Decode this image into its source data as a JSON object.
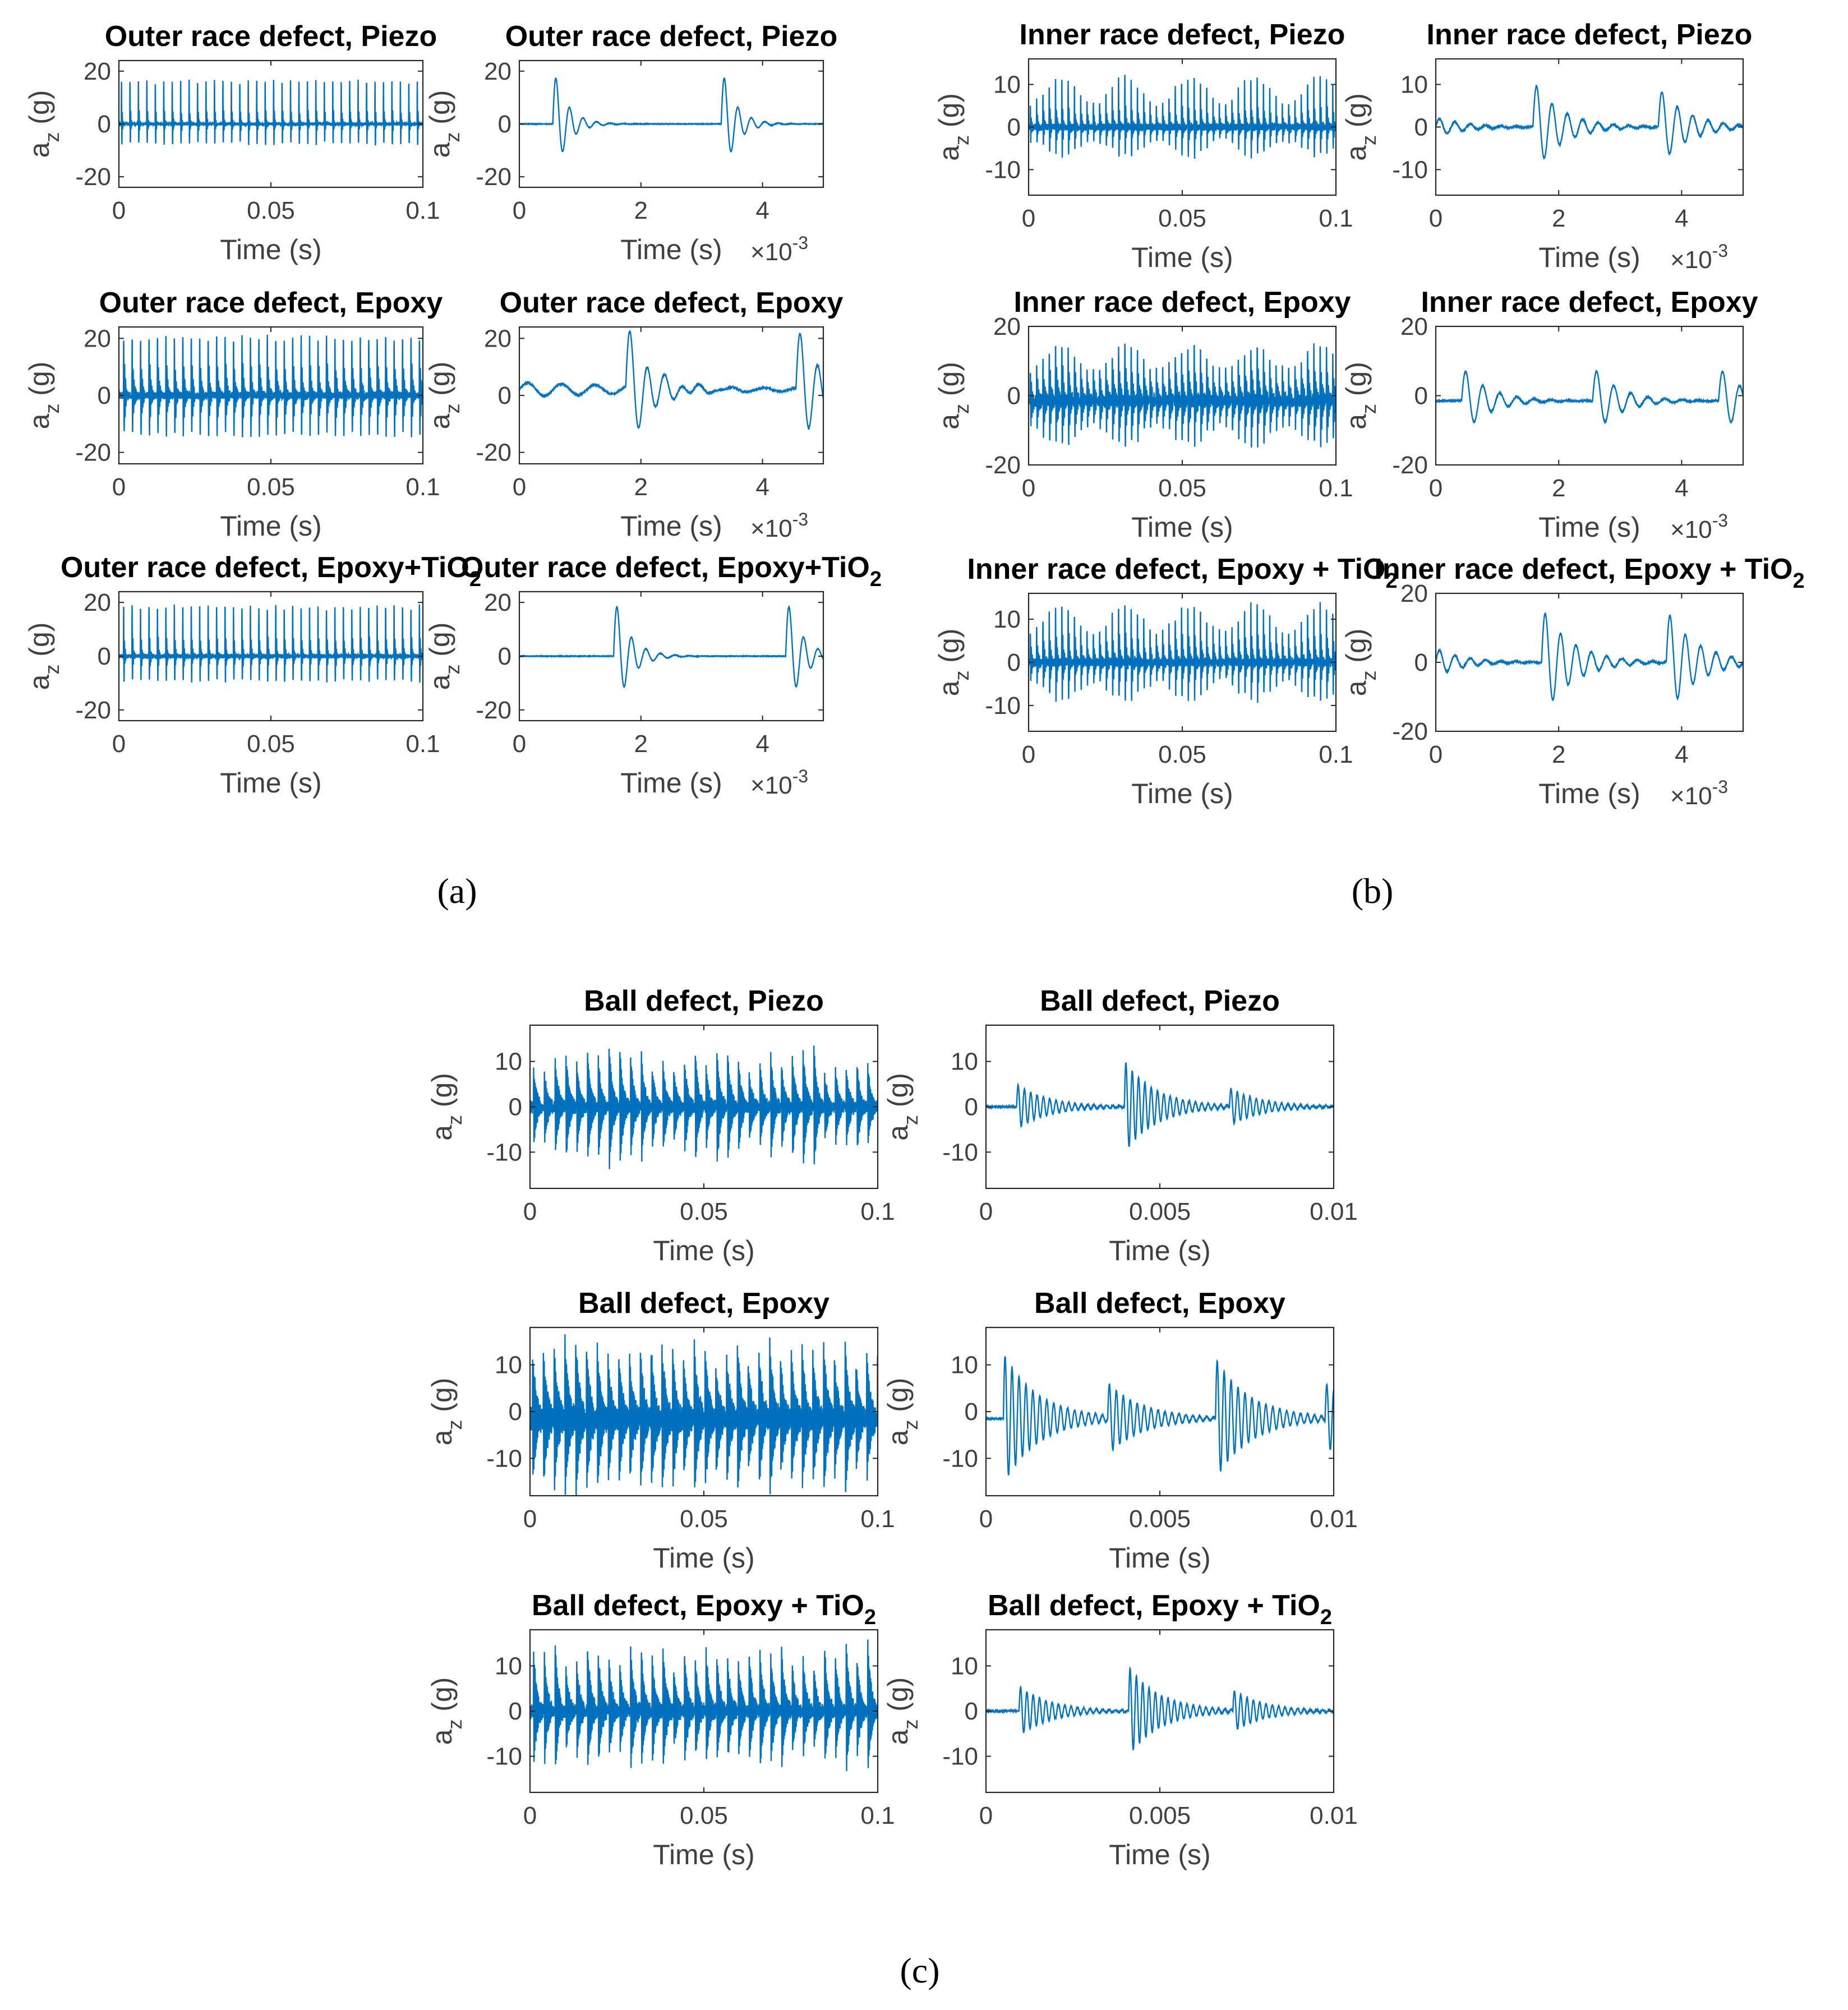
{
  "figure": {
    "panel_labels": [
      {
        "id": "a",
        "text": "(a)"
      },
      {
        "id": "b",
        "text": "(b)"
      },
      {
        "id": "c",
        "text": "(c)"
      }
    ]
  },
  "style": {
    "line_color": "#0072BD",
    "axis_color": "#262626",
    "text_color": "#000000",
    "tick_color": "#404040"
  },
  "axis_text": {
    "ylabel_main": "a",
    "ylabel_sub": "z",
    "ylabel_unit": "(g)",
    "xlabel": "Time (s)",
    "exp_base": "×10",
    "exp_power": "-3"
  },
  "chart_data": [
    {
      "id": "a-full-piezo",
      "type": "line",
      "title": "Outer race defect, Piezo",
      "xlabel": "Time (s)",
      "ylabel": "a_z (g)",
      "xlim": [
        0,
        0.1
      ],
      "ylim": [
        -24,
        24
      ],
      "yticks": [
        -20,
        0,
        20
      ],
      "xticks": [
        0,
        0.05,
        0.1
      ],
      "xtick_labels": [
        "0",
        "0.05",
        "0.1"
      ],
      "signal": {
        "mode": "repeat",
        "period": 0.00278,
        "phase": 0.0008,
        "pos": 22,
        "neg": -19,
        "decay": 0.0002,
        "fn": 4000,
        "noise": 0.6,
        "seed": 1
      }
    },
    {
      "id": "a-zoom-piezo",
      "type": "line",
      "title": "Outer race defect, Piezo",
      "xlabel": "Time (s)",
      "ylabel": "a_z (g)",
      "xlim": [
        0,
        5
      ],
      "ylim": [
        -24,
        24
      ],
      "x_multiplier": "×10^-3",
      "yticks": [
        -20,
        0,
        20
      ],
      "xticks": [
        0,
        2,
        4
      ],
      "xtick_labels": [
        "0",
        "2",
        "4"
      ],
      "signal": {
        "mode": "events",
        "impacts": [
          [
            0.55,
            1.0
          ],
          [
            3.32,
            1.0
          ]
        ],
        "amp": 22,
        "decay": 0.22,
        "fn": 4.5,
        "noise": 0.05,
        "seed": 2
      }
    },
    {
      "id": "a-full-epoxy",
      "type": "line",
      "title": "Outer race defect, Epoxy",
      "xlabel": "Time (s)",
      "ylabel": "a_z (g)",
      "xlim": [
        0,
        0.1
      ],
      "ylim": [
        -24,
        24
      ],
      "yticks": [
        -20,
        0,
        20
      ],
      "xticks": [
        0,
        0.05,
        0.1
      ],
      "xtick_labels": [
        "0",
        "0.05",
        "0.1"
      ],
      "signal": {
        "mode": "repeat",
        "period": 0.00278,
        "phase": 0.0015,
        "pos": 24,
        "neg": -23,
        "decay": 0.00045,
        "fn": 3200,
        "noise": 1.2,
        "seed": 3
      }
    },
    {
      "id": "a-zoom-epoxy",
      "type": "line",
      "title": "Outer race defect, Epoxy",
      "xlabel": "Time (s)",
      "ylabel": "a_z (g)",
      "xlim": [
        0,
        5
      ],
      "ylim": [
        -24,
        24
      ],
      "x_multiplier": "×10^-3",
      "yticks": [
        -20,
        0,
        20
      ],
      "xticks": [
        0,
        2,
        4
      ],
      "xtick_labels": [
        "0",
        "2",
        "4"
      ],
      "signal": {
        "mode": "events",
        "impacts": [
          [
            1.75,
            1.0
          ],
          [
            4.55,
            1.0
          ]
        ],
        "amp": 23,
        "decay": 0.38,
        "fn": 3.5,
        "noise": 0.15,
        "offset": 2,
        "pre": [
          2.5,
          3.0,
          1.8
        ],
        "seed": 4
      }
    },
    {
      "id": "a-full-tio2",
      "type": "line",
      "title": "Outer race defect, Epoxy+TiO",
      "title_sub": "2",
      "xlabel": "Time (s)",
      "ylabel": "a_z (g)",
      "xlim": [
        0,
        0.1
      ],
      "ylim": [
        -24,
        24
      ],
      "yticks": [
        -20,
        0,
        20
      ],
      "xticks": [
        0,
        0.05,
        0.1
      ],
      "xtick_labels": [
        "0",
        "0.05",
        "0.1"
      ],
      "signal": {
        "mode": "repeat",
        "period": 0.00278,
        "phase": 0.0015,
        "pos": 24,
        "neg": -20,
        "decay": 0.00025,
        "fn": 3800,
        "noise": 0.8,
        "seed": 5
      }
    },
    {
      "id": "a-zoom-tio2",
      "type": "line",
      "title": "Outer race defect, Epoxy+TiO",
      "title_sub": "2",
      "xlabel": "Time (s)",
      "ylabel": "a_z (g)",
      "xlim": [
        0,
        5
      ],
      "ylim": [
        -24,
        24
      ],
      "x_multiplier": "×10^-3",
      "yticks": [
        -20,
        0,
        20
      ],
      "xticks": [
        0,
        2,
        4
      ],
      "xtick_labels": [
        "0",
        "2",
        "4"
      ],
      "signal": {
        "mode": "events",
        "impacts": [
          [
            1.55,
            1.0
          ],
          [
            4.38,
            1.0
          ]
        ],
        "amp": 23,
        "decay": 0.25,
        "fn": 4.2,
        "noise": 0.05,
        "seed": 6
      }
    },
    {
      "id": "b-full-piezo",
      "type": "line",
      "title": "Inner race defect, Piezo",
      "xlabel": "Time (s)",
      "ylabel": "a_z (g)",
      "xlim": [
        0,
        0.1
      ],
      "ylim": [
        -16,
        16
      ],
      "yticks": [
        -10,
        0,
        10
      ],
      "xticks": [
        0,
        0.05,
        0.1
      ],
      "xtick_labels": [
        "0",
        "0.05",
        "0.1"
      ],
      "signal": {
        "mode": "repeat",
        "period": 0.00205,
        "phase": 0.0005,
        "pos": 15,
        "neg": -14,
        "decay": 0.0003,
        "fn": 3500,
        "noise": 0.8,
        "mod": 0.021,
        "moddepth": 0.55,
        "seed": 7
      }
    },
    {
      "id": "b-zoom-piezo",
      "type": "line",
      "title": "Inner race defect, Piezo",
      "xlabel": "Time (s)",
      "ylabel": "a_z (g)",
      "xlim": [
        0,
        5
      ],
      "ylim": [
        -16,
        16
      ],
      "x_multiplier": "×10^-3",
      "yticks": [
        -10,
        0,
        10
      ],
      "xticks": [
        0,
        2,
        4
      ],
      "xtick_labels": [
        "0",
        "2",
        "4"
      ],
      "signal": {
        "mode": "events",
        "impacts": [
          [
            1.58,
            1.0
          ],
          [
            3.62,
            0.85
          ]
        ],
        "amp": 11,
        "decay": 0.45,
        "fn": 4.0,
        "noise": 0.1,
        "pre": [
          2.2,
          0.5,
          4.0
        ],
        "seed": 8
      }
    },
    {
      "id": "b-full-epoxy",
      "type": "line",
      "title": "Inner race defect, Epoxy",
      "xlabel": "Time (s)",
      "ylabel": "a_z (g)",
      "xlim": [
        0,
        0.1
      ],
      "ylim": [
        -20,
        20
      ],
      "yticks": [
        -20,
        0,
        20
      ],
      "xticks": [
        0,
        0.05,
        0.1
      ],
      "xtick_labels": [
        "0",
        "0.05",
        "0.1"
      ],
      "signal": {
        "mode": "repeat",
        "period": 0.00205,
        "phase": 0.0005,
        "pos": 18,
        "neg": -19,
        "decay": 0.0006,
        "fn": 3000,
        "noise": 1.2,
        "mod": 0.021,
        "moddepth": 0.45,
        "offset": -1.5,
        "seed": 9
      }
    },
    {
      "id": "b-zoom-epoxy",
      "type": "line",
      "title": "Inner race defect, Epoxy",
      "xlabel": "Time (s)",
      "ylabel": "a_z (g)",
      "xlim": [
        0,
        5
      ],
      "ylim": [
        -20,
        20
      ],
      "x_multiplier": "×10^-3",
      "yticks": [
        -20,
        0,
        20
      ],
      "xticks": [
        0,
        2,
        4
      ],
      "xtick_labels": [
        "0",
        "2",
        "4"
      ],
      "signal": {
        "mode": "events",
        "impacts": [
          [
            0.42,
            1.0
          ],
          [
            2.55,
            1.0
          ],
          [
            4.6,
            1.0
          ]
        ],
        "amp": 10,
        "decay": 0.42,
        "fn": 3.6,
        "noise": 0.1,
        "offset": -1.5,
        "seed": 10
      }
    },
    {
      "id": "b-full-tio2",
      "type": "line",
      "title": "Inner race defect, Epoxy + TiO",
      "title_sub": "2",
      "xlabel": "Time (s)",
      "ylabel": "a_z (g)",
      "xlim": [
        0,
        0.1
      ],
      "ylim": [
        -16,
        16
      ],
      "yticks": [
        -10,
        0,
        10
      ],
      "xticks": [
        0,
        0.05,
        0.1
      ],
      "xtick_labels": [
        "0",
        "0.05",
        "0.1"
      ],
      "signal": {
        "mode": "repeat",
        "period": 0.00205,
        "phase": 0.0005,
        "pos": 16,
        "neg": -15,
        "decay": 0.0004,
        "fn": 3400,
        "noise": 0.9,
        "mod": 0.021,
        "moddepth": 0.5,
        "seed": 11
      }
    },
    {
      "id": "b-zoom-tio2",
      "type": "line",
      "title": "Inner race defect, Epoxy + TiO",
      "title_sub": "2",
      "xlabel": "Time (s)",
      "ylabel": "a_z (g)",
      "xlim": [
        0,
        5
      ],
      "ylim": [
        -20,
        20
      ],
      "x_multiplier": "×10^-3",
      "yticks": [
        -20,
        0,
        20
      ],
      "xticks": [
        0,
        2,
        4
      ],
      "xtick_labels": [
        "0",
        "2",
        "4"
      ],
      "signal": {
        "mode": "events",
        "impacts": [
          [
            1.72,
            1.0
          ],
          [
            3.75,
            0.95
          ]
        ],
        "amp": 16,
        "decay": 0.48,
        "fn": 4.0,
        "noise": 0.1,
        "pre": [
          4.0,
          0.45,
          4.0
        ],
        "seed": 12
      }
    },
    {
      "id": "c-full-piezo",
      "type": "line",
      "title": "Ball defect, Piezo",
      "xlabel": "Time (s)",
      "ylabel": "a_z (g)",
      "xlim": [
        0,
        0.1
      ],
      "ylim": [
        -18,
        18
      ],
      "yticks": [
        -10,
        0,
        10
      ],
      "xticks": [
        0,
        0.05,
        0.1
      ],
      "xtick_labels": [
        "0",
        "0.05",
        "0.1"
      ],
      "signal": {
        "mode": "repeat",
        "period": 0.0031,
        "phase": 0.001,
        "pos": 15,
        "neg": -16,
        "decay": 0.001,
        "fn": 5000,
        "noise": 0.8,
        "randamp": 0.45,
        "seed": 13
      }
    },
    {
      "id": "c-zoom-piezo",
      "type": "line",
      "title": "Ball defect, Piezo",
      "xlabel": "Time (s)",
      "ylabel": "a_z (g)",
      "xlim": [
        0,
        0.01
      ],
      "ylim": [
        -18,
        18
      ],
      "yticks": [
        -10,
        0,
        10
      ],
      "xticks": [
        0,
        0.005,
        0.01
      ],
      "xtick_labels": [
        "0",
        "0.005",
        "0.01"
      ],
      "signal": {
        "mode": "events",
        "impacts": [
          [
            0.00088,
            0.5
          ],
          [
            0.00398,
            1.0
          ],
          [
            0.007,
            0.45
          ]
        ],
        "amp": 10,
        "decay": 0.0009,
        "fn": 5500,
        "noise": 0.1,
        "seed": 14
      }
    },
    {
      "id": "c-full-epoxy",
      "type": "line",
      "title": "Ball defect, Epoxy",
      "xlabel": "Time (s)",
      "ylabel": "a_z (g)",
      "xlim": [
        0,
        0.1
      ],
      "ylim": [
        -18,
        18
      ],
      "yticks": [
        -10,
        0,
        10
      ],
      "xticks": [
        0,
        0.05,
        0.1
      ],
      "xtick_labels": [
        "0",
        "0.05",
        "0.1"
      ],
      "signal": {
        "mode": "repeat",
        "period": 0.0031,
        "phase": 0.0007,
        "pos": 17,
        "neg": -18,
        "decay": 0.0012,
        "fn": 4500,
        "noise": 1.2,
        "randamp": 0.35,
        "offset": -1.5,
        "seed": 15
      }
    },
    {
      "id": "c-zoom-epoxy",
      "type": "line",
      "title": "Ball defect, Epoxy",
      "xlabel": "Time (s)",
      "ylabel": "a_z (g)",
      "xlim": [
        0,
        0.01
      ],
      "ylim": [
        -18,
        18
      ],
      "yticks": [
        -10,
        0,
        10
      ],
      "xticks": [
        0,
        0.005,
        0.01
      ],
      "xtick_labels": [
        "0",
        "0.005",
        "0.01"
      ],
      "signal": {
        "mode": "events",
        "impacts": [
          [
            0.0005,
            1.0
          ],
          [
            0.0035,
            0.5
          ],
          [
            0.0066,
            0.95
          ],
          [
            0.00975,
            0.55
          ]
        ],
        "amp": 14,
        "decay": 0.001,
        "fn": 5000,
        "noise": 0.1,
        "offset": -1.5,
        "seed": 16
      }
    },
    {
      "id": "c-full-tio2",
      "type": "line",
      "title": "Ball defect, Epoxy + TiO",
      "title_sub": "2",
      "xlabel": "Time (s)",
      "ylabel": "a_z (g)",
      "xlim": [
        0,
        0.1
      ],
      "ylim": [
        -18,
        18
      ],
      "yticks": [
        -10,
        0,
        10
      ],
      "xticks": [
        0,
        0.05,
        0.1
      ],
      "xtick_labels": [
        "0",
        "0.05",
        "0.1"
      ],
      "signal": {
        "mode": "repeat",
        "period": 0.0031,
        "phase": 0.001,
        "pos": 17,
        "neg": -16,
        "decay": 0.001,
        "fn": 5000,
        "noise": 0.9,
        "randamp": 0.4,
        "seed": 17
      }
    },
    {
      "id": "c-zoom-tio2",
      "type": "line",
      "title": "Ball defect, Epoxy + TiO",
      "title_sub": "2",
      "xlabel": "Time (s)",
      "ylabel": "a_z (g)",
      "xlim": [
        0,
        0.01
      ],
      "ylim": [
        -18,
        18
      ],
      "yticks": [
        -10,
        0,
        10
      ],
      "xticks": [
        0,
        0.005,
        0.01
      ],
      "xtick_labels": [
        "0",
        "0.005",
        "0.01"
      ],
      "signal": {
        "mode": "events",
        "impacts": [
          [
            0.00095,
            0.55
          ],
          [
            0.0041,
            1.0
          ],
          [
            0.0071,
            0.5
          ]
        ],
        "amp": 10,
        "decay": 0.0009,
        "fn": 5500,
        "noise": 0.1,
        "seed": 18
      }
    }
  ]
}
